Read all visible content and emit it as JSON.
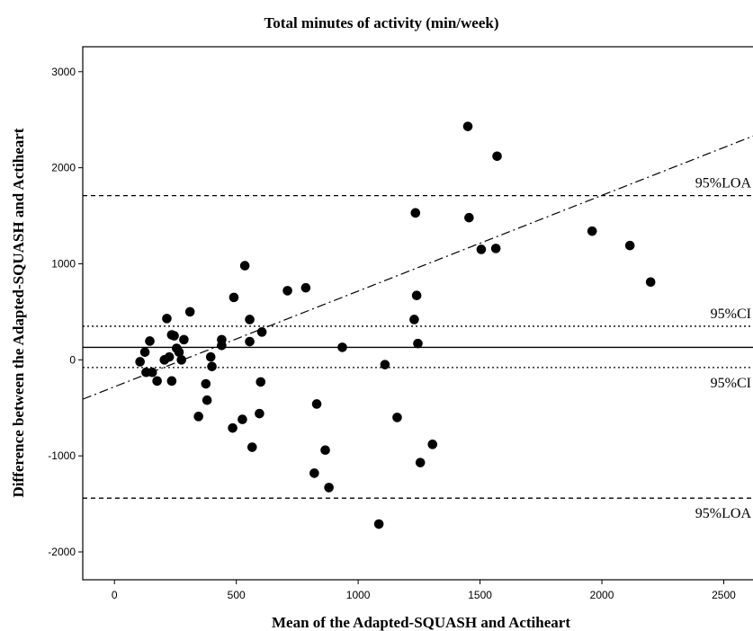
{
  "chart_data": {
    "type": "scatter",
    "title": "Total minutes of activity (min/week)",
    "xlabel": "Mean of the Adapted-SQUASH and Actiheart",
    "ylabel": "Difference between the Adapted-SQUASH and Actiheart",
    "xlim": [
      -130,
      2620
    ],
    "ylim": [
      -2290,
      3260
    ],
    "x_ticks": [
      "0",
      "500",
      "1000",
      "1500",
      "2000",
      "2500"
    ],
    "y_ticks": [
      "3000",
      "2000",
      "1000",
      "0",
      "-1000",
      "-2000"
    ],
    "grid": false,
    "points": [
      {
        "x": 105,
        "y": -20
      },
      {
        "x": 125,
        "y": 80
      },
      {
        "x": 130,
        "y": -130
      },
      {
        "x": 145,
        "y": 195
      },
      {
        "x": 155,
        "y": -130
      },
      {
        "x": 175,
        "y": -220
      },
      {
        "x": 205,
        "y": 0
      },
      {
        "x": 215,
        "y": 430
      },
      {
        "x": 225,
        "y": 30
      },
      {
        "x": 235,
        "y": 260
      },
      {
        "x": 235,
        "y": -220
      },
      {
        "x": 245,
        "y": 250
      },
      {
        "x": 255,
        "y": 120
      },
      {
        "x": 265,
        "y": 80
      },
      {
        "x": 275,
        "y": 0
      },
      {
        "x": 285,
        "y": 210
      },
      {
        "x": 310,
        "y": 500
      },
      {
        "x": 345,
        "y": -590
      },
      {
        "x": 375,
        "y": -250
      },
      {
        "x": 380,
        "y": -420
      },
      {
        "x": 395,
        "y": 30
      },
      {
        "x": 400,
        "y": -70
      },
      {
        "x": 440,
        "y": 210
      },
      {
        "x": 440,
        "y": 150
      },
      {
        "x": 485,
        "y": -710
      },
      {
        "x": 490,
        "y": 650
      },
      {
        "x": 525,
        "y": -620
      },
      {
        "x": 535,
        "y": 980
      },
      {
        "x": 555,
        "y": 420
      },
      {
        "x": 555,
        "y": 190
      },
      {
        "x": 565,
        "y": -910
      },
      {
        "x": 595,
        "y": -560
      },
      {
        "x": 600,
        "y": -230
      },
      {
        "x": 605,
        "y": 290
      },
      {
        "x": 710,
        "y": 720
      },
      {
        "x": 785,
        "y": 750
      },
      {
        "x": 820,
        "y": -1180
      },
      {
        "x": 830,
        "y": -460
      },
      {
        "x": 865,
        "y": -940
      },
      {
        "x": 880,
        "y": -1330
      },
      {
        "x": 935,
        "y": 130
      },
      {
        "x": 1085,
        "y": -1710
      },
      {
        "x": 1110,
        "y": -50
      },
      {
        "x": 1160,
        "y": -600
      },
      {
        "x": 1230,
        "y": 420
      },
      {
        "x": 1235,
        "y": 1530
      },
      {
        "x": 1240,
        "y": 670
      },
      {
        "x": 1245,
        "y": 170
      },
      {
        "x": 1255,
        "y": -1070
      },
      {
        "x": 1305,
        "y": -880
      },
      {
        "x": 1450,
        "y": 2430
      },
      {
        "x": 1455,
        "y": 1480
      },
      {
        "x": 1505,
        "y": 1150
      },
      {
        "x": 1565,
        "y": 1160
      },
      {
        "x": 1570,
        "y": 2120
      },
      {
        "x": 1960,
        "y": 1340
      },
      {
        "x": 2115,
        "y": 1190
      },
      {
        "x": 2200,
        "y": 810
      }
    ],
    "reference_lines": [
      {
        "label": "95%LOA",
        "y": 1710,
        "style": "dashed"
      },
      {
        "label": "95%CI",
        "y": 350,
        "style": "dotted"
      },
      {
        "label": "",
        "y": 130,
        "style": "solid"
      },
      {
        "label": "95%CI",
        "y": -80,
        "style": "dotted"
      },
      {
        "label": "95%LOA",
        "y": -1440,
        "style": "dashed"
      }
    ],
    "regression_line": {
      "style": "dash-dot",
      "x": [
        -130,
        2620
      ],
      "y": [
        -410,
        2330
      ]
    }
  }
}
